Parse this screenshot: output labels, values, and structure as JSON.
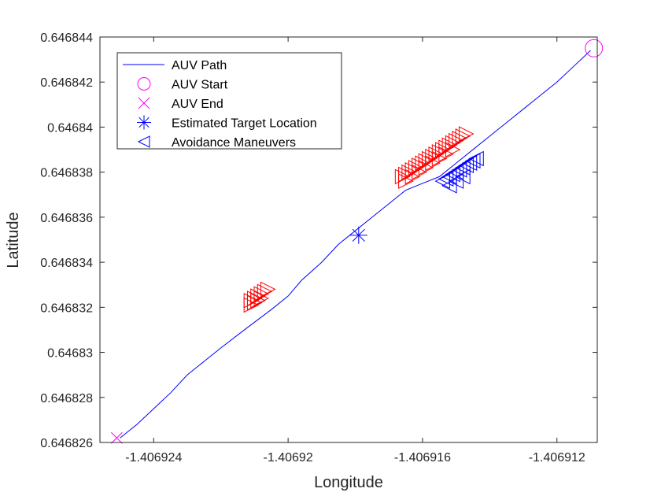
{
  "chart_data": {
    "type": "line",
    "xlabel": "Longitude",
    "ylabel": "Latitude",
    "xlim": [
      -1.4069256,
      -1.4069108
    ],
    "ylim": [
      0.646826,
      0.646844
    ],
    "xticks": [
      -1.406924,
      -1.40692,
      -1.406916,
      -1.406912
    ],
    "xtick_labels": [
      "-1.406924",
      "-1.40692",
      "-1.406916",
      "-1.406912"
    ],
    "yticks": [
      0.646826,
      0.646828,
      0.64683,
      0.646832,
      0.646834,
      0.646836,
      0.646838,
      0.64684,
      0.646842,
      0.646844
    ],
    "ytick_labels": [
      "0.646826",
      "0.646828",
      "0.64683",
      "0.646832",
      "0.646834",
      "0.646836",
      "0.646838",
      "0.64684",
      "0.646842",
      "0.646844"
    ],
    "grid": false,
    "legend_position": "top-left",
    "legend": [
      {
        "label": "AUV Path",
        "marker": "line",
        "color": "#0000ff"
      },
      {
        "label": "AUV Start",
        "marker": "circle",
        "color": "#ff00ff"
      },
      {
        "label": "AUV End",
        "marker": "x",
        "color": "#ff00ff"
      },
      {
        "label": "Estimated Target Location",
        "marker": "asterisk",
        "color": "#0000ff"
      },
      {
        "label": "Avoidance Maneuvers",
        "marker": "triangle-left",
        "color": "#0000ff"
      }
    ],
    "series": [
      {
        "name": "AUV Path",
        "color": "#0000ff",
        "x": [
          -1.406925,
          -1.4069245,
          -1.406924,
          -1.4069235,
          -1.406923,
          -1.4069225,
          -1.406922,
          -1.4069213,
          -1.4069205,
          -1.40692,
          -1.4069196,
          -1.406919,
          -1.4069185,
          -1.406918,
          -1.4069175,
          -1.406917,
          -1.4069165,
          -1.406916,
          -1.4069155,
          -1.406915,
          -1.4069145,
          -1.406914,
          -1.4069135,
          -1.406913,
          -1.4069125,
          -1.406912,
          -1.4069115,
          -1.406911
        ],
        "y": [
          0.6468262,
          0.6468268,
          0.6468275,
          0.6468282,
          0.646829,
          0.6468296,
          0.6468302,
          0.646831,
          0.6468319,
          0.6468325,
          0.6468332,
          0.646834,
          0.6468348,
          0.6468354,
          0.646836,
          0.6468366,
          0.6468372,
          0.6468375,
          0.6468378,
          0.6468384,
          0.646839,
          0.6468396,
          0.6468402,
          0.6468408,
          0.6468414,
          0.646842,
          0.6468427,
          0.6468434
        ]
      },
      {
        "name": "AUV Start",
        "color": "#ff00ff",
        "marker": "circle",
        "x": [
          -1.4069109
        ],
        "y": [
          0.6468435
        ]
      },
      {
        "name": "AUV End",
        "color": "#ff00ff",
        "marker": "x",
        "x": [
          -1.4069251
        ],
        "y": [
          0.6468262
        ]
      },
      {
        "name": "Estimated Target Location",
        "color": "#0000ff",
        "marker": "asterisk",
        "x": [
          -1.4069179
        ],
        "y": [
          0.6468352
        ]
      },
      {
        "name": "Avoidance Maneuvers",
        "color": "#0000ff",
        "marker": "triangle-left",
        "x": [
          -1.4069154,
          -1.4069153,
          -1.4069152,
          -1.4069151,
          -1.406915,
          -1.4069149,
          -1.4069148,
          -1.4069147,
          -1.4069146,
          -1.4069145,
          -1.4069144,
          -1.4069152,
          -1.406915,
          -1.4069148
        ],
        "y": [
          0.6468376,
          0.6468377,
          0.6468378,
          0.6468379,
          0.646838,
          0.6468381,
          0.6468382,
          0.6468383,
          0.6468384,
          0.6468385,
          0.6468386,
          0.6468374,
          0.6468376,
          0.6468378
        ]
      },
      {
        "color": "#ff0000",
        "marker": "triangle-right",
        "x": [
          -1.4069211,
          -1.406921,
          -1.4069209,
          -1.4069208,
          -1.4069207,
          -1.4069206,
          -1.4069211,
          -1.406921,
          -1.4069209,
          -1.4069208
        ],
        "y": [
          0.6468323,
          0.6468324,
          0.6468325,
          0.6468326,
          0.6468327,
          0.6468328,
          0.6468321,
          0.6468322,
          0.6468323,
          0.6468324
        ]
      },
      {
        "color": "#ff0000",
        "marker": "triangle-right",
        "x": [
          -1.4069166,
          -1.4069165,
          -1.4069164,
          -1.4069163,
          -1.4069162,
          -1.4069161,
          -1.406916,
          -1.4069159,
          -1.4069158,
          -1.4069157,
          -1.4069156,
          -1.4069155,
          -1.4069154,
          -1.4069153,
          -1.4069152,
          -1.4069151,
          -1.406915,
          -1.4069149,
          -1.4069148,
          -1.4069147,
          -1.4069165,
          -1.4069163,
          -1.4069161,
          -1.4069159,
          -1.4069157,
          -1.4069155,
          -1.4069153,
          -1.4069151
        ],
        "y": [
          0.6468378,
          0.6468379,
          0.646838,
          0.6468381,
          0.6468382,
          0.6468383,
          0.6468384,
          0.6468385,
          0.6468386,
          0.6468387,
          0.6468388,
          0.6468389,
          0.646839,
          0.6468391,
          0.6468392,
          0.6468393,
          0.6468394,
          0.6468395,
          0.6468396,
          0.6468397,
          0.6468376,
          0.6468378,
          0.646838,
          0.6468382,
          0.6468384,
          0.6468386,
          0.6468388,
          0.646839
        ]
      }
    ]
  }
}
